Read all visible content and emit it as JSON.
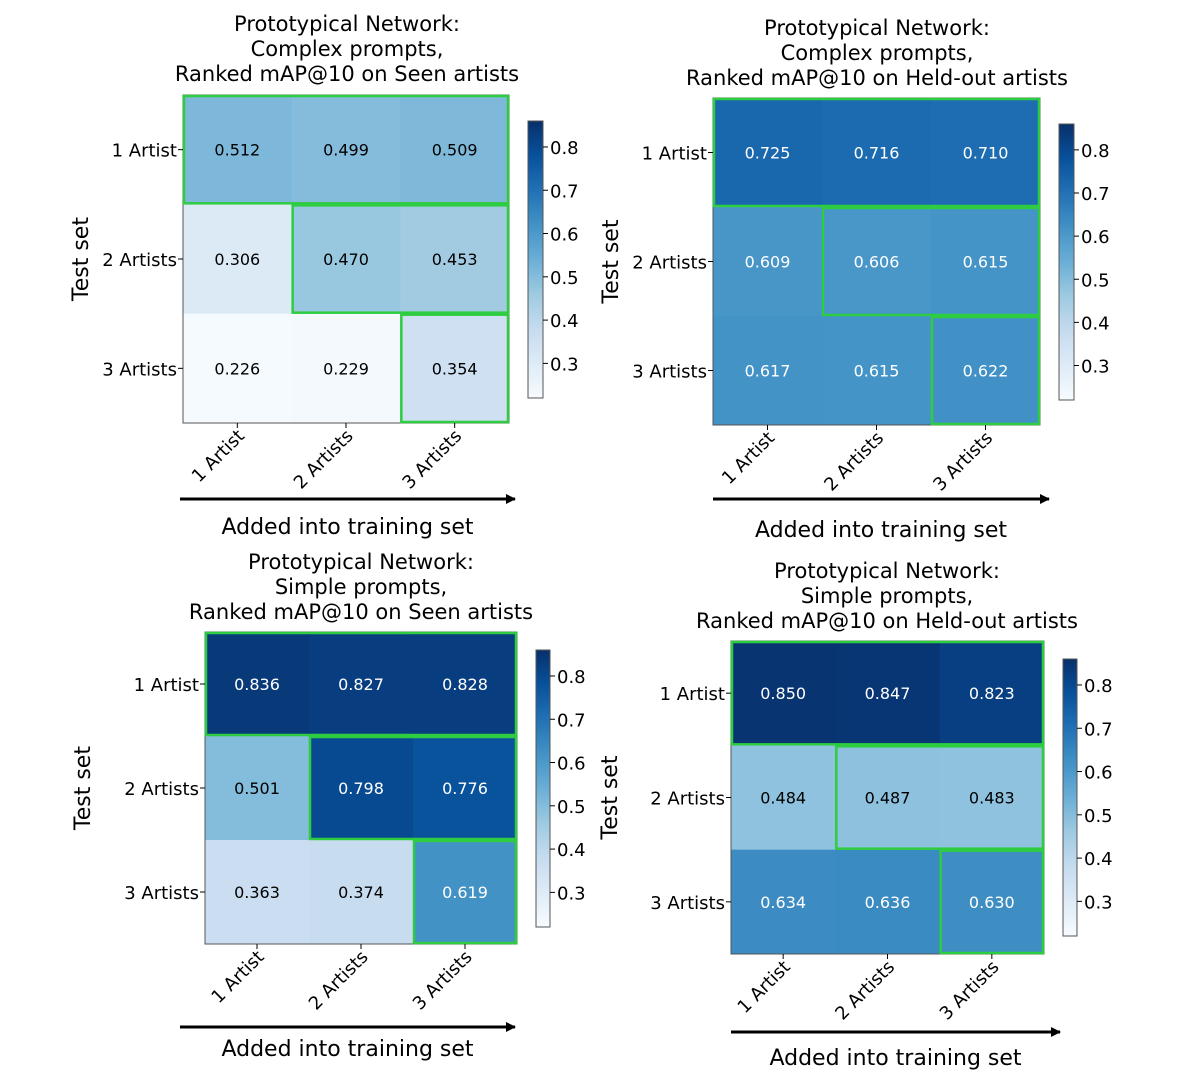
{
  "chart_data": [
    {
      "type": "heatmap",
      "title_lines": [
        "Prototypical Network:",
        "Complex prompts,",
        "Ranked mAP@10 on Seen artists"
      ],
      "xlabel": "Added into training set",
      "ylabel": "Test set",
      "x_categories": [
        "1 Artist",
        "2 Artists",
        "3 Artists"
      ],
      "y_categories": [
        "1 Artist",
        "2 Artists",
        "3 Artists"
      ],
      "values": [
        [
          0.512,
          0.499,
          0.509
        ],
        [
          0.306,
          0.47,
          0.453
        ],
        [
          0.226,
          0.229,
          0.354
        ]
      ],
      "value_labels": [
        [
          "0.512",
          "0.499",
          "0.509"
        ],
        [
          "0.306",
          "0.470",
          "0.453"
        ],
        [
          "0.226",
          "0.229",
          "0.354"
        ]
      ],
      "colormap": "Blues",
      "color_range": [
        0.22,
        0.86
      ],
      "colorbar_ticks": [
        "0.3",
        "0.4",
        "0.5",
        "0.6",
        "0.7",
        "0.8"
      ],
      "highlight_color": "#2ecc40"
    },
    {
      "type": "heatmap",
      "title_lines": [
        "Prototypical Network:",
        "Complex prompts,",
        "Ranked mAP@10 on Held-out artists"
      ],
      "xlabel": "Added into training set",
      "ylabel": "Test set",
      "x_categories": [
        "1 Artist",
        "2 Artists",
        "3 Artists"
      ],
      "y_categories": [
        "1 Artist",
        "2 Artists",
        "3 Artists"
      ],
      "values": [
        [
          0.725,
          0.716,
          0.71
        ],
        [
          0.609,
          0.606,
          0.615
        ],
        [
          0.617,
          0.615,
          0.622
        ]
      ],
      "value_labels": [
        [
          "0.725",
          "0.716",
          "0.710"
        ],
        [
          "0.609",
          "0.606",
          "0.615"
        ],
        [
          "0.617",
          "0.615",
          "0.622"
        ]
      ],
      "colormap": "Blues",
      "color_range": [
        0.22,
        0.86
      ],
      "colorbar_ticks": [
        "0.3",
        "0.4",
        "0.5",
        "0.6",
        "0.7",
        "0.8"
      ],
      "highlight_color": "#2ecc40"
    },
    {
      "type": "heatmap",
      "title_lines": [
        "Prototypical Network:",
        "Simple prompts,",
        "Ranked mAP@10 on Seen artists"
      ],
      "xlabel": "Added into training set",
      "ylabel": "Test set",
      "x_categories": [
        "1 Artist",
        "2 Artists",
        "3 Artists"
      ],
      "y_categories": [
        "1 Artist",
        "2 Artists",
        "3 Artists"
      ],
      "values": [
        [
          0.836,
          0.827,
          0.828
        ],
        [
          0.501,
          0.798,
          0.776
        ],
        [
          0.363,
          0.374,
          0.619
        ]
      ],
      "value_labels": [
        [
          "0.836",
          "0.827",
          "0.828"
        ],
        [
          "0.501",
          "0.798",
          "0.776"
        ],
        [
          "0.363",
          "0.374",
          "0.619"
        ]
      ],
      "colormap": "Blues",
      "color_range": [
        0.22,
        0.86
      ],
      "colorbar_ticks": [
        "0.3",
        "0.4",
        "0.5",
        "0.6",
        "0.7",
        "0.8"
      ],
      "highlight_color": "#2ecc40"
    },
    {
      "type": "heatmap",
      "title_lines": [
        "Prototypical Network:",
        "Simple prompts,",
        "Ranked mAP@10 on Held-out artists"
      ],
      "xlabel": "Added into training set",
      "ylabel": "Test set",
      "x_categories": [
        "1 Artist",
        "2 Artists",
        "3 Artists"
      ],
      "y_categories": [
        "1 Artist",
        "2 Artists",
        "3 Artists"
      ],
      "values": [
        [
          0.85,
          0.847,
          0.823
        ],
        [
          0.484,
          0.487,
          0.483
        ],
        [
          0.634,
          0.636,
          0.63
        ]
      ],
      "value_labels": [
        [
          "0.850",
          "0.847",
          "0.823"
        ],
        [
          "0.484",
          "0.487",
          "0.483"
        ],
        [
          "0.634",
          "0.636",
          "0.630"
        ]
      ],
      "colormap": "Blues",
      "color_range": [
        0.22,
        0.86
      ],
      "colorbar_ticks": [
        "0.3",
        "0.4",
        "0.5",
        "0.6",
        "0.7",
        "0.8"
      ],
      "highlight_color": "#2ecc40"
    }
  ]
}
